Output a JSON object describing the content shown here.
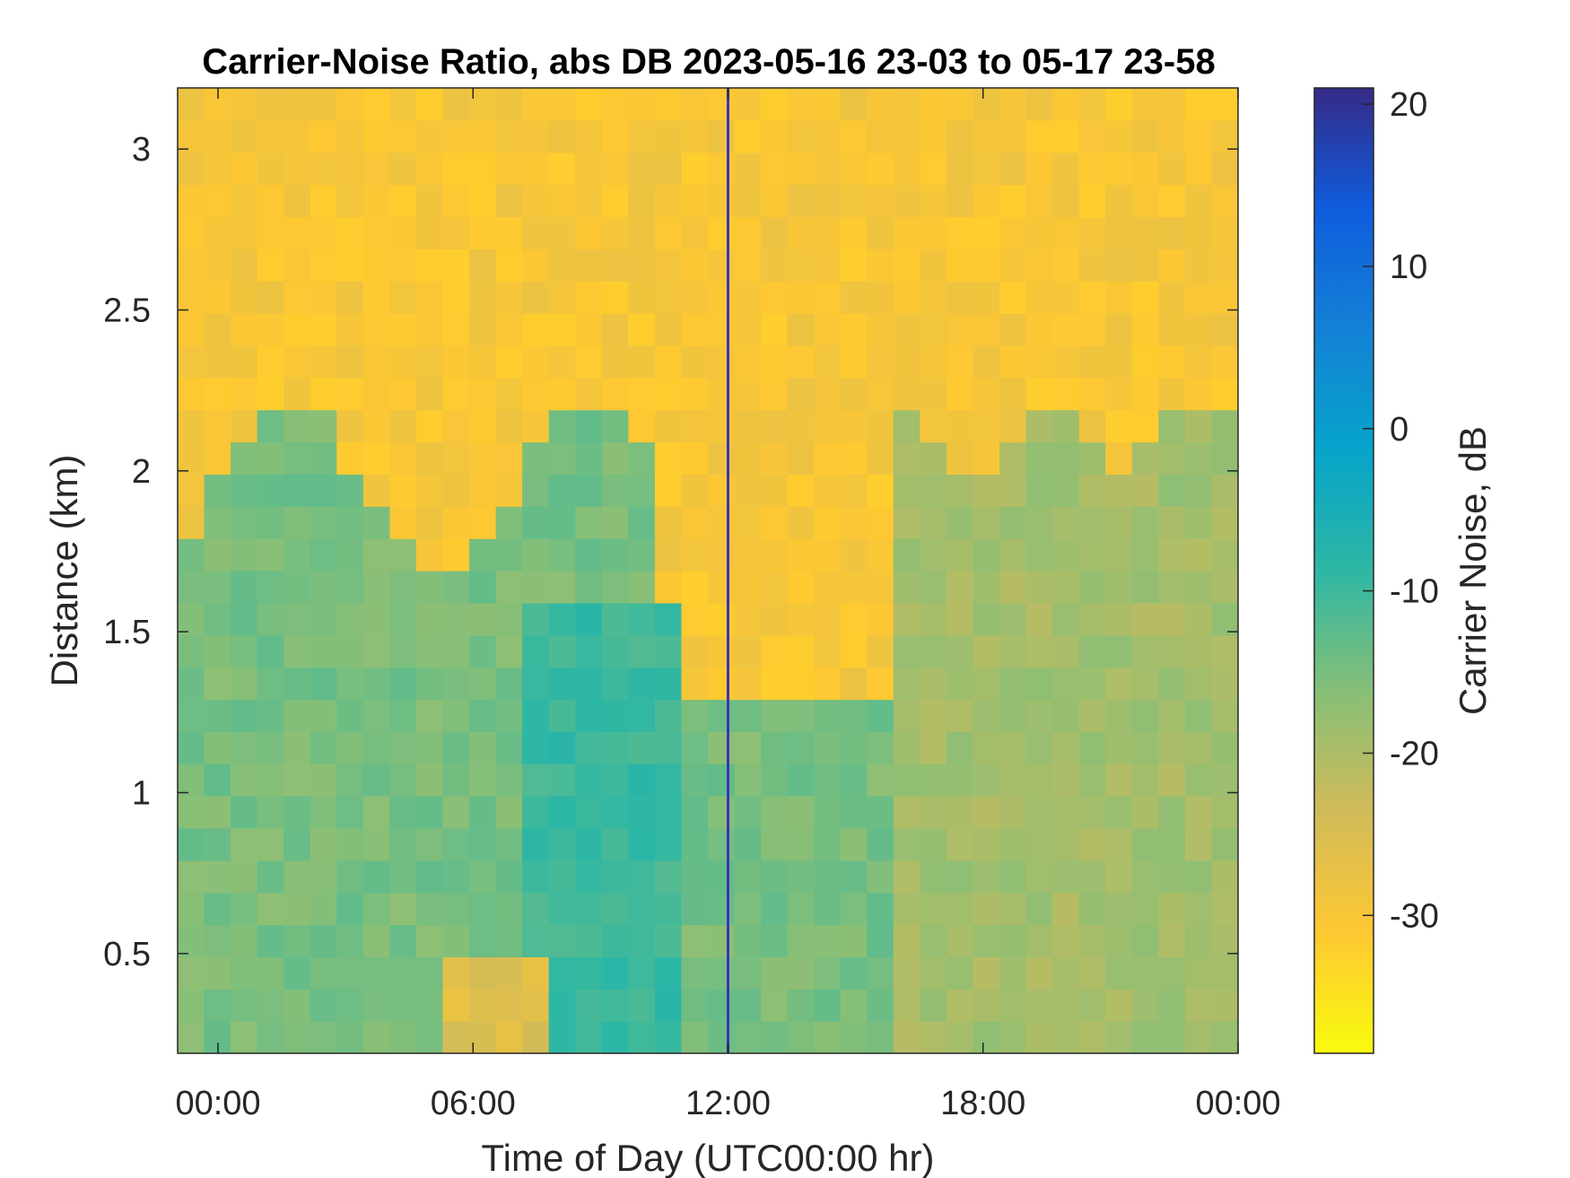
{
  "chart_data": {
    "type": "heatmap",
    "title": "Carrier-Noise Ratio, abs DB 2023-05-16 23-03 to 05-17 23-58",
    "xlabel": "Time of Day (UTC00:00 hr)",
    "ylabel": "Distance (km)",
    "colorbar_label": "Carrier Noise, dB",
    "x_ticks": [
      "00:00",
      "06:00",
      "12:00",
      "18:00",
      "00:00"
    ],
    "x_tick_hours": [
      0,
      6,
      12,
      18,
      24
    ],
    "xlim_hours": [
      -0.95,
      24.0
    ],
    "y_ticks": [
      "0.5",
      "1",
      "1.5",
      "2",
      "2.5",
      "3"
    ],
    "y_tick_values": [
      0.5,
      1,
      1.5,
      2,
      2.5,
      3
    ],
    "ylim_km": [
      0.19,
      3.19
    ],
    "colorbar_ticks": [
      "20",
      "10",
      "0",
      "-10",
      "-20",
      "-30"
    ],
    "colorbar_tick_values": [
      20,
      10,
      0,
      -10,
      -20,
      -30
    ],
    "clim_db": [
      -38.5,
      21
    ],
    "colormap": "parula (reversed)",
    "colormap_stops": [
      "#352a87",
      "#0f5cdd",
      "#1481d6",
      "#06a4ca",
      "#2eb7a4",
      "#87bf77",
      "#d1bb59",
      "#fec832",
      "#f9fb0e"
    ],
    "marked_time_hours": 12.0,
    "marked_time_color": "#3c33b8",
    "description_regions": [
      {
        "hours": [
          -0.95,
          10.3
        ],
        "km": [
          0.19,
          1.9
        ],
        "db": -14
      },
      {
        "hours": [
          -0.95,
          10.3
        ],
        "km": [
          1.9,
          3.19
        ],
        "db": -25
      },
      {
        "hours": [
          10.3,
          24.0
        ],
        "km": [
          2.3,
          3.19
        ],
        "db": -31
      },
      {
        "hours": [
          11.5,
          16.0
        ],
        "km": [
          1.3,
          2.3
        ],
        "db": -30
      },
      {
        "hours": [
          16.0,
          24.0
        ],
        "km": [
          0.19,
          2.1
        ],
        "db": -19
      }
    ]
  }
}
